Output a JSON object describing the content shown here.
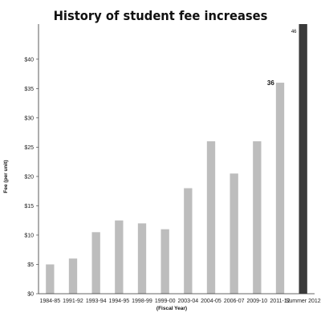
{
  "chart_data": {
    "type": "bar",
    "title": "History of student fee increases",
    "xlabel": "(Fiscal Year)",
    "ylabel": "Fee (per unit)",
    "categories": [
      "1984-85",
      "1991-92",
      "1993-94",
      "1994-95",
      "1998-99",
      "1999-00",
      "2003-04",
      "2004-05",
      "2006-07",
      "2009-10",
      "2011-12",
      "Summer 2012"
    ],
    "values": [
      5,
      6,
      10.5,
      12.5,
      12,
      11,
      18,
      26,
      20.5,
      26,
      36,
      46
    ],
    "ylim": [
      0,
      46
    ],
    "yticks": [
      0,
      5,
      10,
      15,
      20,
      25,
      30,
      35,
      40
    ],
    "ytick_labels": [
      "$0",
      "$5",
      "$10",
      "$15",
      "$20",
      "$25",
      "$30",
      "$35",
      "$40"
    ],
    "data_labels": [
      {
        "category": "2011-12",
        "text": "36"
      },
      {
        "category": "Summer 2012",
        "text": "46"
      }
    ],
    "grid": false,
    "legend": "none",
    "colors": {
      "bar": "#bdbdbd",
      "highlight_bar": "#3a3a3a",
      "axis": "#333333"
    }
  }
}
